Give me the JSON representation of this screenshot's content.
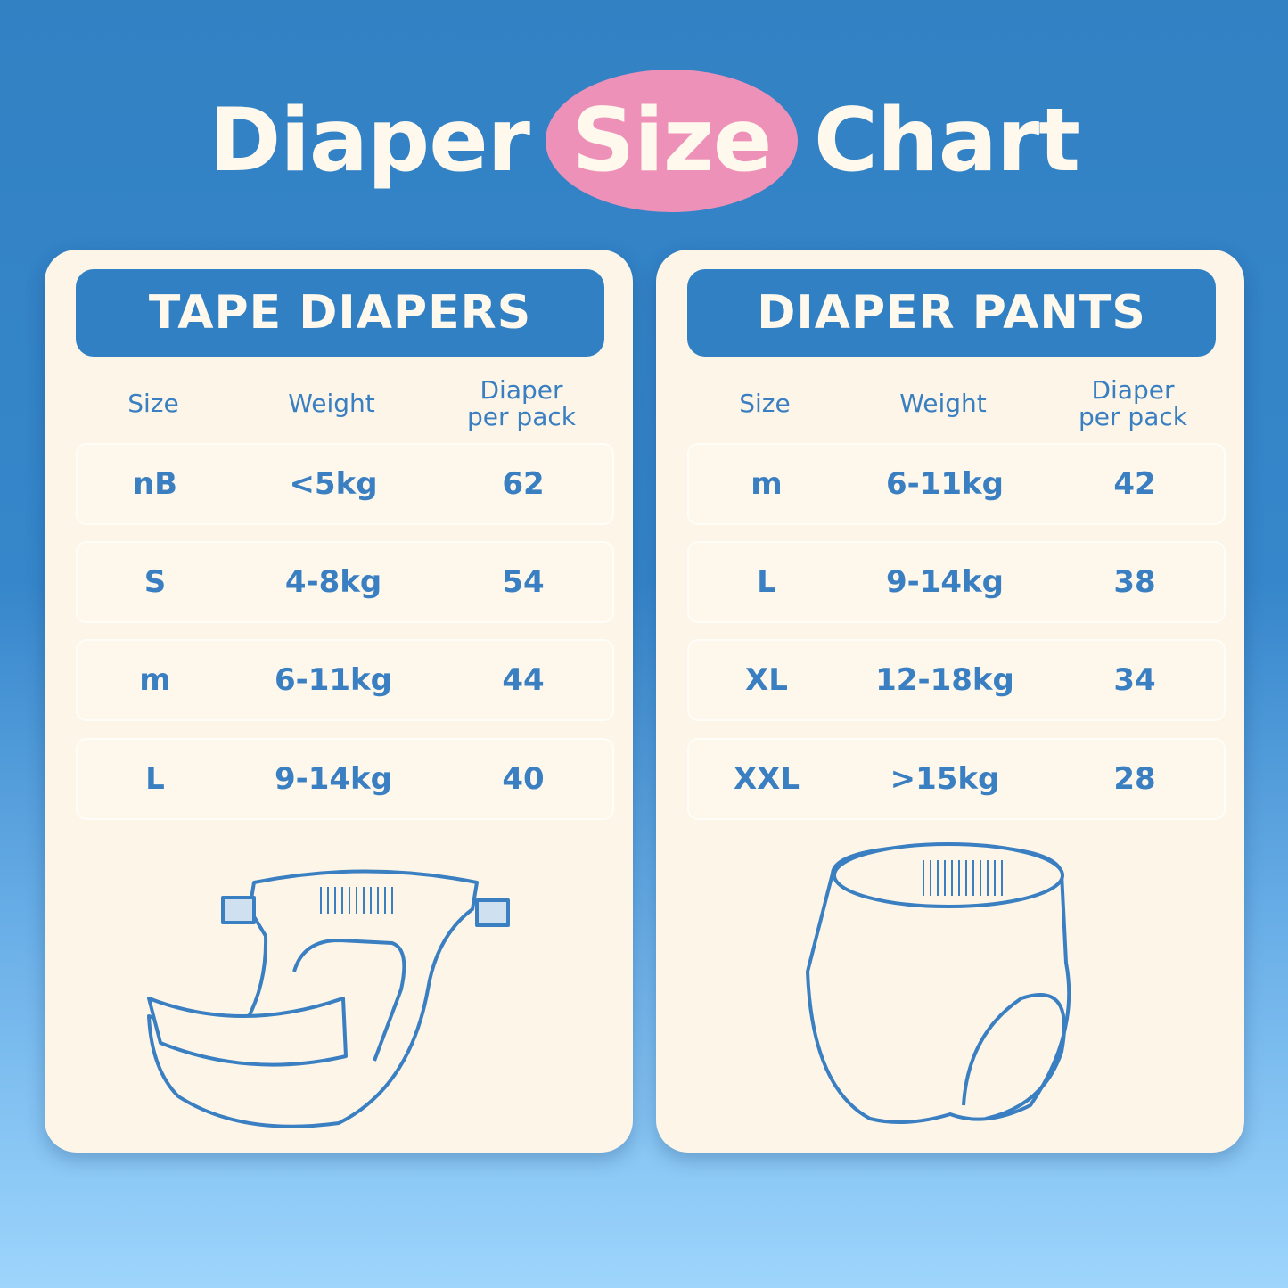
{
  "title": {
    "part1": "Diaper",
    "highlight": "Size",
    "part2": "Chart"
  },
  "colors": {
    "primary": "#3180c3",
    "highlight": "#ee91b9",
    "card": "#fcf5e8"
  },
  "columns": {
    "size": "Size",
    "weight": "Weight",
    "pack_line1": "Diaper",
    "pack_line2": "per pack"
  },
  "tape": {
    "heading": "TAPE DIAPERS",
    "illustration": "tape-diaper-icon",
    "rows": [
      {
        "size": "nB",
        "weight": "<5kg",
        "pack": "62"
      },
      {
        "size": "S",
        "weight": "4-8kg",
        "pack": "54"
      },
      {
        "size": "m",
        "weight": "6-11kg",
        "pack": "44"
      },
      {
        "size": "L",
        "weight": "9-14kg",
        "pack": "40"
      }
    ]
  },
  "pants": {
    "heading": "DIAPER PANTS",
    "illustration": "pants-diaper-icon",
    "rows": [
      {
        "size": "m",
        "weight": "6-11kg",
        "pack": "42"
      },
      {
        "size": "L",
        "weight": "9-14kg",
        "pack": "38"
      },
      {
        "size": "XL",
        "weight": "12-18kg",
        "pack": "34"
      },
      {
        "size": "XXL",
        "weight": ">15kg",
        "pack": "28"
      }
    ]
  }
}
